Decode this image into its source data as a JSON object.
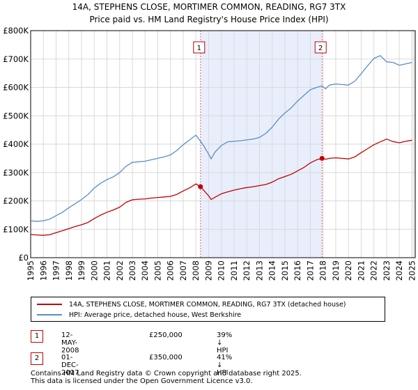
{
  "chart_data": {
    "type": "line",
    "title": "14A, STEPHENS CLOSE, MORTIMER COMMON, READING, RG7 3TX",
    "subtitle": "Price paid vs. HM Land Registry's House Price Index (HPI)",
    "xlim": [
      1995.0,
      2025.25
    ],
    "ylim": [
      0,
      800000
    ],
    "x_ticks": [
      1995,
      1996,
      1997,
      1998,
      1999,
      2000,
      2001,
      2002,
      2003,
      2004,
      2005,
      2006,
      2007,
      2008,
      2009,
      2010,
      2011,
      2012,
      2013,
      2014,
      2015,
      2016,
      2017,
      2018,
      2019,
      2020,
      2021,
      2022,
      2023,
      2024,
      2025
    ],
    "y_ticks": [
      {
        "value": 0,
        "label": "£0"
      },
      {
        "value": 100000,
        "label": "£100K"
      },
      {
        "value": 200000,
        "label": "£200K"
      },
      {
        "value": 300000,
        "label": "£300K"
      },
      {
        "value": 400000,
        "label": "£400K"
      },
      {
        "value": 500000,
        "label": "£500K"
      },
      {
        "value": 600000,
        "label": "£600K"
      },
      {
        "value": 700000,
        "label": "£700K"
      },
      {
        "value": 800000,
        "label": "£800K"
      }
    ],
    "shaded_region": [
      2008.36,
      2017.92
    ],
    "series": [
      {
        "name": "14A, STEPHENS CLOSE, MORTIMER COMMON, READING, RG7 3TX (detached house)",
        "color": "#c00000",
        "x": [
          1995.0,
          1995.5,
          1996.0,
          1996.5,
          1997.0,
          1997.5,
          1998.0,
          1998.5,
          1999.0,
          1999.5,
          2000.0,
          2000.5,
          2001.0,
          2001.5,
          2002.0,
          2002.5,
          2003.0,
          2003.5,
          2004.0,
          2004.5,
          2005.0,
          2005.5,
          2006.0,
          2006.5,
          2007.0,
          2007.5,
          2008.0,
          2008.36,
          2008.6,
          2009.0,
          2009.2,
          2009.5,
          2010.0,
          2010.5,
          2011.0,
          2011.5,
          2012.0,
          2012.5,
          2013.0,
          2013.5,
          2014.0,
          2014.5,
          2015.0,
          2015.5,
          2016.0,
          2016.5,
          2017.0,
          2017.5,
          2017.92,
          2018.2,
          2018.5,
          2019.0,
          2019.5,
          2020.0,
          2020.5,
          2021.0,
          2021.5,
          2022.0,
          2022.5,
          2023.0,
          2023.5,
          2024.0,
          2024.5,
          2025.0
        ],
        "values": [
          82000,
          80000,
          79000,
          81000,
          88000,
          95000,
          102000,
          110000,
          116000,
          124000,
          138000,
          150000,
          160000,
          168000,
          178000,
          195000,
          204000,
          206000,
          207000,
          210000,
          212000,
          214000,
          216000,
          223000,
          235000,
          246000,
          260000,
          250000,
          238000,
          218000,
          205000,
          213000,
          225000,
          232000,
          238000,
          243000,
          247000,
          250000,
          254000,
          258000,
          266000,
          278000,
          286000,
          294000,
          306000,
          318000,
          334000,
          345000,
          350000,
          347000,
          350000,
          352000,
          350000,
          348000,
          355000,
          370000,
          384000,
          398000,
          408000,
          418000,
          409000,
          405000,
          410000,
          414000
        ]
      },
      {
        "name": "HPI: Average price, detached house, West Berkshire",
        "color": "#5b8cc8",
        "x": [
          1995.0,
          1995.5,
          1996.0,
          1996.5,
          1997.0,
          1997.5,
          1998.0,
          1998.5,
          1999.0,
          1999.5,
          2000.0,
          2000.5,
          2001.0,
          2001.5,
          2002.0,
          2002.5,
          2003.0,
          2003.5,
          2004.0,
          2004.5,
          2005.0,
          2005.5,
          2006.0,
          2006.5,
          2007.0,
          2007.5,
          2008.0,
          2008.36,
          2008.6,
          2009.0,
          2009.2,
          2009.5,
          2010.0,
          2010.5,
          2011.0,
          2011.5,
          2012.0,
          2012.5,
          2013.0,
          2013.5,
          2014.0,
          2014.5,
          2015.0,
          2015.5,
          2016.0,
          2016.5,
          2017.0,
          2017.5,
          2017.92,
          2018.2,
          2018.5,
          2019.0,
          2019.5,
          2020.0,
          2020.5,
          2021.0,
          2021.5,
          2022.0,
          2022.5,
          2023.0,
          2023.5,
          2024.0,
          2024.5,
          2025.0
        ],
        "values": [
          130000,
          128000,
          130000,
          136000,
          148000,
          160000,
          176000,
          190000,
          205000,
          222000,
          245000,
          262000,
          275000,
          285000,
          300000,
          322000,
          336000,
          338000,
          340000,
          345000,
          350000,
          355000,
          362000,
          378000,
          398000,
          415000,
          432000,
          410000,
          395000,
          365000,
          348000,
          372000,
          395000,
          408000,
          410000,
          412000,
          415000,
          418000,
          424000,
          438000,
          460000,
          488000,
          510000,
          528000,
          552000,
          572000,
          592000,
          600000,
          605000,
          595000,
          608000,
          612000,
          610000,
          608000,
          622000,
          648000,
          676000,
          702000,
          712000,
          690000,
          688000,
          678000,
          683000,
          688000
        ]
      }
    ],
    "annotations": [
      {
        "label": "1",
        "x": 2008.36,
        "y": 250000
      },
      {
        "label": "2",
        "x": 2017.92,
        "y": 350000
      }
    ]
  },
  "legend": {
    "property_label": "14A, STEPHENS CLOSE, MORTIMER COMMON, READING, RG7 3TX (detached house)",
    "hpi_label": "HPI: Average price, detached house, West Berkshire"
  },
  "transactions": [
    {
      "num": "1",
      "date": "12-MAY-2008",
      "price": "£250,000",
      "delta": "39% ↓ HPI"
    },
    {
      "num": "2",
      "date": "01-DEC-2017",
      "price": "£350,000",
      "delta": "41% ↓ HPI"
    }
  ],
  "footer": {
    "line1": "Contains HM Land Registry data © Crown copyright and database right 2025.",
    "line2": "This data is licensed under the Open Government Licence v3.0."
  }
}
